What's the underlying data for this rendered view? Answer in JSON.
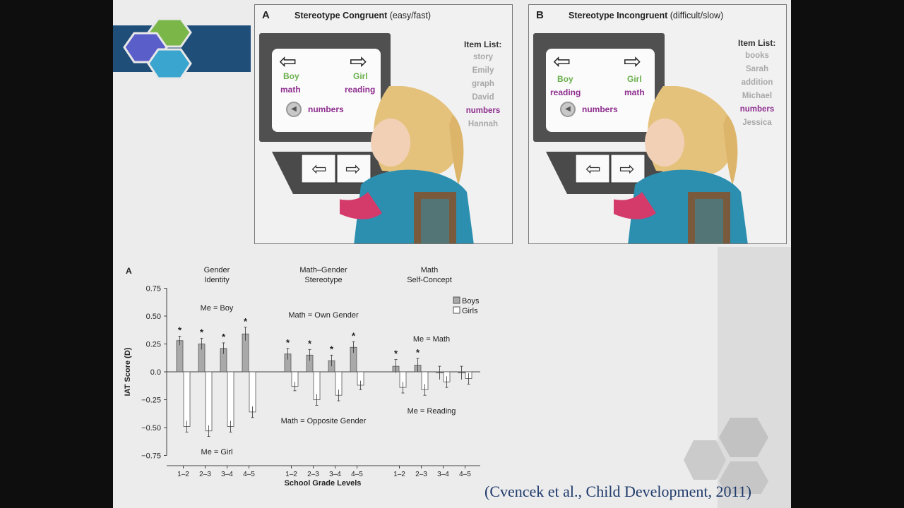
{
  "panels": [
    {
      "letter": "A",
      "title_bold": "Stereotype Congruent",
      "title_rest": " (easy/fast)",
      "left_word": "Boy",
      "left_sub": "math",
      "right_word": "Girl",
      "right_sub": "reading",
      "stimulus": "numbers",
      "item_list_header": "Item List:",
      "items": [
        "story",
        "Emily",
        "graph",
        "David",
        "numbers",
        "Hannah"
      ],
      "highlight_index": 4
    },
    {
      "letter": "B",
      "title_bold": "Stereotype Incongruent",
      "title_rest": " (difficult/slow)",
      "left_word": "Boy",
      "left_sub": "reading",
      "right_word": "Girl",
      "right_sub": "math",
      "stimulus": "numbers",
      "item_list_header": "Item List:",
      "items": [
        "books",
        "Sarah",
        "addition",
        "Michael",
        "numbers",
        "Jessica"
      ],
      "highlight_index": 4
    }
  ],
  "chart_data": {
    "type": "bar",
    "panel_letter": "A",
    "ylabel": "IAT Score (D)",
    "xlabel": "School Grade Levels",
    "ylim": [
      -0.75,
      0.75
    ],
    "yticks": [
      "0.75",
      "0.50",
      "0.25",
      "0.0",
      "−0.25",
      "−0.50",
      "−0.75"
    ],
    "legend": [
      "Boys",
      "Girls"
    ],
    "legend_position": "top-right",
    "groups": [
      {
        "title_lines": [
          "Gender",
          "Identity"
        ],
        "top_annotation": "Me = Boy",
        "bottom_annotation": "Me = Girl",
        "categories": [
          "1–2",
          "2–3",
          "3–4",
          "4–5"
        ],
        "boys": [
          0.28,
          0.25,
          0.21,
          0.34
        ],
        "girls": [
          -0.49,
          -0.53,
          -0.49,
          -0.36
        ],
        "boys_err": [
          0.04,
          0.05,
          0.05,
          0.06
        ],
        "girls_err": [
          0.05,
          0.05,
          0.05,
          0.05
        ],
        "significant": [
          true,
          true,
          true,
          true
        ]
      },
      {
        "title_lines": [
          "Math–Gender",
          "Stereotype"
        ],
        "top_annotation": "Math = Own Gender",
        "bottom_annotation": "Math = Opposite Gender",
        "categories": [
          "1–2",
          "2–3",
          "3–4",
          "4–5"
        ],
        "boys": [
          0.16,
          0.15,
          0.1,
          0.22
        ],
        "girls": [
          -0.13,
          -0.25,
          -0.21,
          -0.12
        ],
        "boys_err": [
          0.05,
          0.05,
          0.05,
          0.05
        ],
        "girls_err": [
          0.04,
          0.05,
          0.05,
          0.04
        ],
        "significant": [
          true,
          true,
          true,
          true
        ]
      },
      {
        "title_lines": [
          "Math",
          "Self-Concept"
        ],
        "top_annotation": "Me = Math",
        "bottom_annotation": "Me = Reading",
        "categories": [
          "1–2",
          "2–3",
          "3–4",
          "4–5"
        ],
        "boys": [
          0.05,
          0.06,
          -0.01,
          -0.01
        ],
        "girls": [
          -0.14,
          -0.16,
          -0.09,
          -0.06
        ],
        "boys_err": [
          0.06,
          0.06,
          0.06,
          0.06
        ],
        "girls_err": [
          0.05,
          0.05,
          0.05,
          0.05
        ],
        "significant": [
          true,
          true,
          false,
          false
        ]
      }
    ]
  },
  "citation": "(Cvencek et al., Child Development, 2011)",
  "colors": {
    "banner": "#1f4e79",
    "hex_green": "#7ab648",
    "hex_purple": "#5a5ec8",
    "hex_cyan": "#3aa5cf",
    "boys_bar": "#a9a9a9",
    "girls_bar": "#ffffff",
    "citation": "#1f3a6b"
  }
}
